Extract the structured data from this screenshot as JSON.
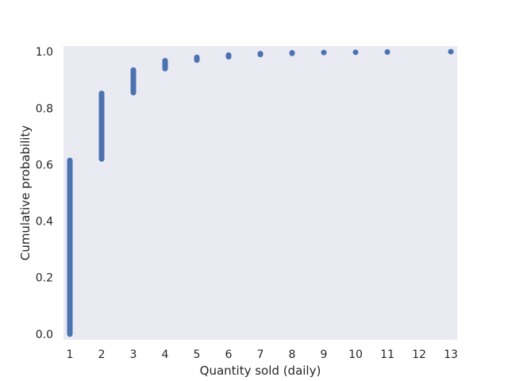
{
  "chart_data": {
    "type": "scatter",
    "xlabel": "Quantity sold (daily)",
    "ylabel": "Cumulative probability",
    "xlim": [
      0.8,
      13.2
    ],
    "ylim": [
      -0.02,
      1.02
    ],
    "xticks": [
      1,
      2,
      3,
      4,
      5,
      6,
      7,
      8,
      9,
      10,
      11,
      12,
      13
    ],
    "yticks": [
      0.0,
      0.2,
      0.4,
      0.6,
      0.8,
      1.0
    ],
    "ytick_labels": [
      "0.0",
      "0.2",
      "0.4",
      "0.6",
      "0.8",
      "1.0"
    ],
    "grid": false,
    "background": "#eaeaf2",
    "marker_color": "#4c72b0",
    "points": [
      {
        "x": 1,
        "y_from": 0.0,
        "y_to": 0.615
      },
      {
        "x": 2,
        "y_from": 0.62,
        "y_to": 0.852
      },
      {
        "x": 3,
        "y_from": 0.855,
        "y_to": 0.935
      },
      {
        "x": 4,
        "y_from": 0.94,
        "y_to": 0.968
      },
      {
        "x": 5,
        "y_from": 0.97,
        "y_to": 0.98
      },
      {
        "x": 6,
        "y_from": 0.982,
        "y_to": 0.988
      },
      {
        "x": 7,
        "y_from": 0.99,
        "y_to": 0.993
      },
      {
        "x": 8,
        "y_from": 0.994,
        "y_to": 0.996
      },
      {
        "x": 9,
        "y_from": 0.997,
        "y_to": 0.997
      },
      {
        "x": 10,
        "y_from": 0.998,
        "y_to": 0.998
      },
      {
        "x": 11,
        "y_from": 0.999,
        "y_to": 0.999
      },
      {
        "x": 13,
        "y_from": 1.0,
        "y_to": 1.0
      }
    ]
  }
}
